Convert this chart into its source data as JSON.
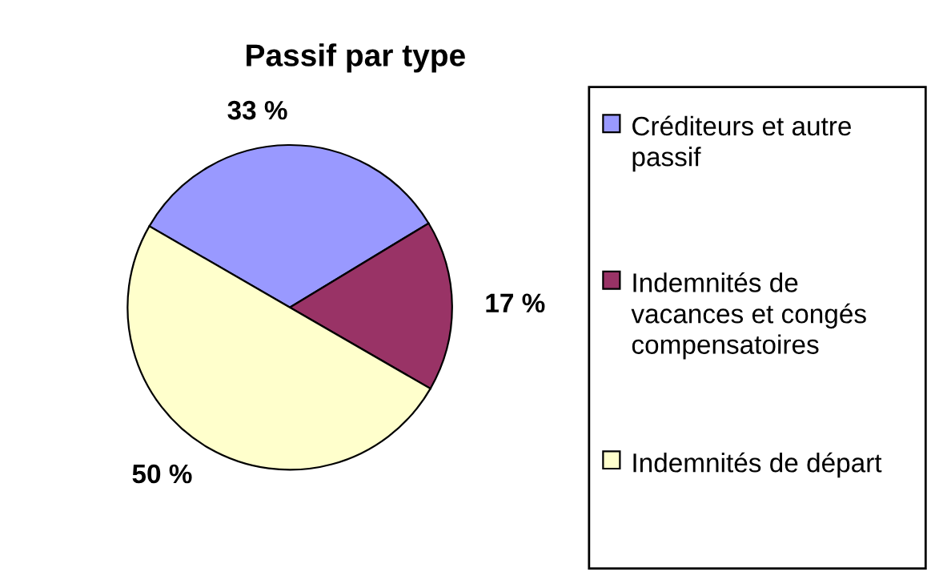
{
  "chart_data": {
    "type": "pie",
    "title": "Passif par type",
    "categories": [
      "Créditeurs et autre passif",
      "Indemnités de vacances et congés compensatoires",
      "Indemnités de départ"
    ],
    "values": [
      33,
      17,
      50
    ],
    "colors": [
      "#9999ff",
      "#993366",
      "#ffffcc"
    ],
    "value_labels": [
      "33 %",
      "17 %",
      "50 %"
    ],
    "legend": "right"
  }
}
